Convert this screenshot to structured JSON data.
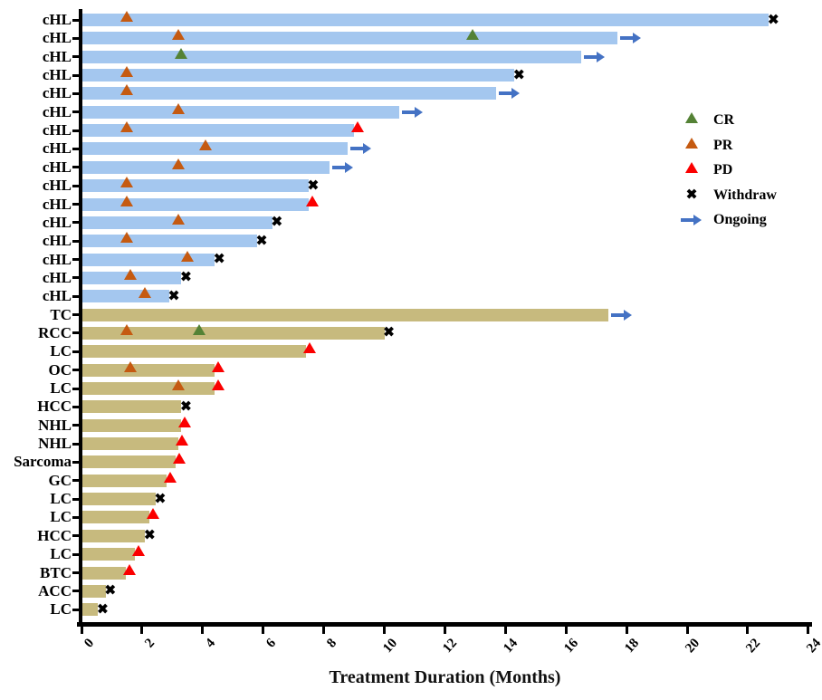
{
  "chart_data": {
    "type": "bar",
    "orientation": "horizontal",
    "xlabel": "Treatment Duration (Months)",
    "xlim": [
      0,
      24
    ],
    "xticks": [
      0,
      2,
      4,
      6,
      8,
      10,
      12,
      14,
      16,
      18,
      20,
      22,
      24
    ],
    "grid": false,
    "legend_position": "right-upper",
    "colors": {
      "chl_bar": "#a4c7ef",
      "other_bar": "#c7ba7e",
      "cr": "#548235",
      "pr": "#c55a11",
      "pd": "#fb0000",
      "withdraw": "#000000",
      "ongoing": "#4472c4"
    },
    "legend": [
      {
        "id": "cr",
        "label": "CR"
      },
      {
        "id": "pr",
        "label": "PR"
      },
      {
        "id": "pd",
        "label": "PD"
      },
      {
        "id": "withdraw",
        "label": "Withdraw"
      },
      {
        "id": "ongoing",
        "label": "Ongoing"
      }
    ],
    "rows": [
      {
        "label": "cHL",
        "group": "chl",
        "duration": 22.7,
        "end": "withdraw",
        "events": [
          {
            "type": "pr",
            "x": 1.5
          }
        ]
      },
      {
        "label": "cHL",
        "group": "chl",
        "duration": 17.7,
        "end": "ongoing",
        "events": [
          {
            "type": "pr",
            "x": 3.2
          },
          {
            "type": "cr",
            "x": 12.9
          }
        ]
      },
      {
        "label": "cHL",
        "group": "chl",
        "duration": 16.5,
        "end": "ongoing",
        "events": [
          {
            "type": "cr",
            "x": 3.3
          }
        ]
      },
      {
        "label": "cHL",
        "group": "chl",
        "duration": 14.3,
        "end": "withdraw",
        "events": [
          {
            "type": "pr",
            "x": 1.5
          }
        ]
      },
      {
        "label": "cHL",
        "group": "chl",
        "duration": 13.7,
        "end": "ongoing",
        "events": [
          {
            "type": "pr",
            "x": 1.5
          }
        ]
      },
      {
        "label": "cHL",
        "group": "chl",
        "duration": 10.5,
        "end": "ongoing",
        "events": [
          {
            "type": "pr",
            "x": 3.2
          }
        ]
      },
      {
        "label": "cHL",
        "group": "chl",
        "duration": 9.0,
        "end": "pd",
        "events": [
          {
            "type": "pr",
            "x": 1.5
          }
        ]
      },
      {
        "label": "cHL",
        "group": "chl",
        "duration": 8.8,
        "end": "ongoing",
        "events": [
          {
            "type": "pr",
            "x": 4.1
          }
        ]
      },
      {
        "label": "cHL",
        "group": "chl",
        "duration": 8.2,
        "end": "ongoing",
        "events": [
          {
            "type": "pr",
            "x": 3.2
          }
        ]
      },
      {
        "label": "cHL",
        "group": "chl",
        "duration": 7.5,
        "end": "withdraw",
        "events": [
          {
            "type": "pr",
            "x": 1.5
          }
        ]
      },
      {
        "label": "cHL",
        "group": "chl",
        "duration": 7.5,
        "end": "pd",
        "events": [
          {
            "type": "pr",
            "x": 1.5
          }
        ]
      },
      {
        "label": "cHL",
        "group": "chl",
        "duration": 6.3,
        "end": "withdraw",
        "events": [
          {
            "type": "pr",
            "x": 3.2
          }
        ]
      },
      {
        "label": "cHL",
        "group": "chl",
        "duration": 5.8,
        "end": "withdraw",
        "events": [
          {
            "type": "pr",
            "x": 1.5
          }
        ]
      },
      {
        "label": "cHL",
        "group": "chl",
        "duration": 4.4,
        "end": "withdraw",
        "events": [
          {
            "type": "pr",
            "x": 3.5
          }
        ]
      },
      {
        "label": "cHL",
        "group": "chl",
        "duration": 3.3,
        "end": "withdraw",
        "events": [
          {
            "type": "pr",
            "x": 1.6
          }
        ]
      },
      {
        "label": "cHL",
        "group": "chl",
        "duration": 2.9,
        "end": "withdraw",
        "events": [
          {
            "type": "pr",
            "x": 2.1
          }
        ]
      },
      {
        "label": "TC",
        "group": "other",
        "duration": 17.4,
        "end": "ongoing",
        "events": []
      },
      {
        "label": "RCC",
        "group": "other",
        "duration": 10.0,
        "end": "withdraw",
        "events": [
          {
            "type": "pr",
            "x": 1.5
          },
          {
            "type": "cr",
            "x": 3.9
          }
        ]
      },
      {
        "label": "LC",
        "group": "other",
        "duration": 7.4,
        "end": "pd",
        "events": []
      },
      {
        "label": "OC",
        "group": "other",
        "duration": 4.4,
        "end": "pd",
        "events": [
          {
            "type": "pr",
            "x": 1.6
          }
        ]
      },
      {
        "label": "LC",
        "group": "other",
        "duration": 4.4,
        "end": "pd",
        "events": [
          {
            "type": "pr",
            "x": 3.2
          }
        ]
      },
      {
        "label": "HCC",
        "group": "other",
        "duration": 3.3,
        "end": "withdraw",
        "events": []
      },
      {
        "label": "NHL",
        "group": "other",
        "duration": 3.3,
        "end": "pd",
        "events": []
      },
      {
        "label": "NHL",
        "group": "other",
        "duration": 3.2,
        "end": "pd",
        "events": []
      },
      {
        "label": "Sarcoma",
        "group": "other",
        "duration": 3.1,
        "end": "pd",
        "events": []
      },
      {
        "label": "GC",
        "group": "other",
        "duration": 2.8,
        "end": "pd",
        "events": []
      },
      {
        "label": "LC",
        "group": "other",
        "duration": 2.45,
        "end": "withdraw",
        "events": []
      },
      {
        "label": "LC",
        "group": "other",
        "duration": 2.25,
        "end": "pd",
        "events": []
      },
      {
        "label": "HCC",
        "group": "other",
        "duration": 2.1,
        "end": "withdraw",
        "events": []
      },
      {
        "label": "LC",
        "group": "other",
        "duration": 1.75,
        "end": "pd",
        "events": []
      },
      {
        "label": "BTC",
        "group": "other",
        "duration": 1.45,
        "end": "pd",
        "events": []
      },
      {
        "label": "ACC",
        "group": "other",
        "duration": 0.8,
        "end": "withdraw",
        "events": []
      },
      {
        "label": "LC",
        "group": "other",
        "duration": 0.55,
        "end": "withdraw",
        "events": []
      }
    ]
  }
}
